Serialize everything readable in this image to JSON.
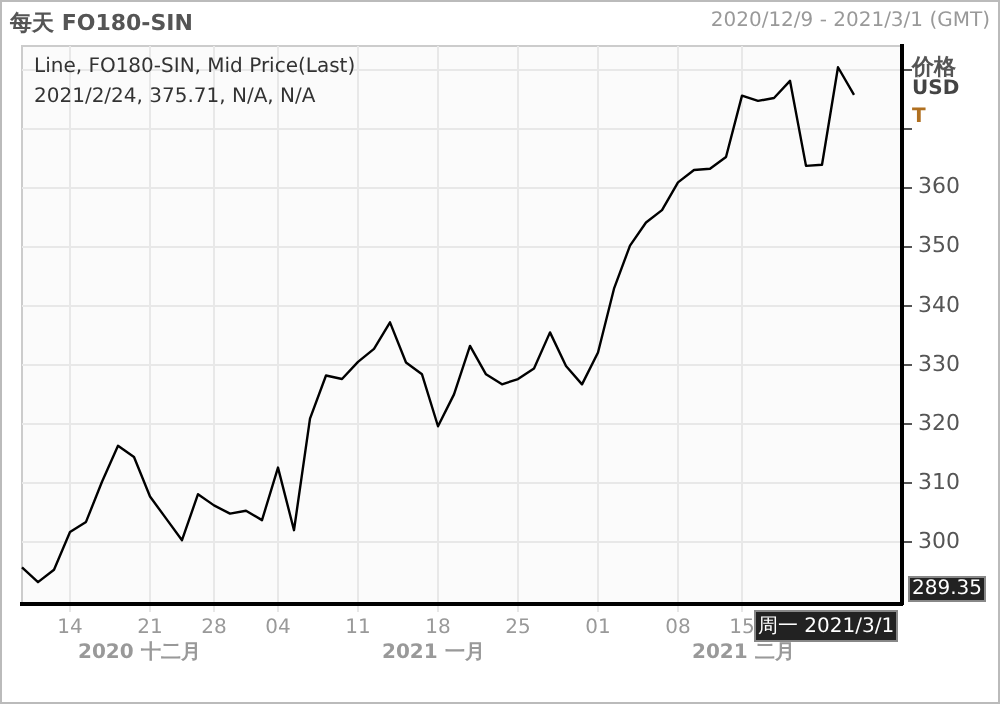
{
  "chart_data": {
    "type": "line",
    "title": "每天 FO180-SIN",
    "subtitle": "2020/12/9 - 2021/3/1 (GMT)",
    "ylabel": "价格",
    "categories": [
      null,
      null,
      null,
      "14",
      null,
      null,
      null,
      null,
      "21",
      null,
      null,
      null,
      "28",
      null,
      null,
      null,
      "04",
      null,
      null,
      null,
      null,
      "11",
      null,
      null,
      null,
      null,
      "18",
      null,
      null,
      null,
      null,
      "25",
      null,
      null,
      null,
      null,
      "01",
      null,
      null,
      null,
      null,
      "08",
      null,
      null,
      null,
      "15",
      null,
      null,
      null,
      null,
      null,
      null,
      null,
      null,
      null,
      null
    ],
    "series": [
      {
        "color": "#000000",
        "values": [
          295.7,
          293.2,
          295.3,
          301.7,
          303.4,
          310.2,
          316.3,
          314.4,
          307.7,
          304,
          300.3,
          308.1,
          306.2,
          304.8,
          305.3,
          303.7,
          312.6,
          302,
          320.9,
          328.2,
          327.6,
          330.5,
          332.7,
          337.2,
          330.4,
          328.4,
          319.6,
          325,
          333.2,
          328.4,
          326.7,
          327.6,
          329.4,
          335.5,
          329.8,
          326.7,
          332.1,
          342.9,
          350.2,
          354.1,
          356.2,
          360.9,
          363,
          363.2,
          365.2,
          375.6,
          374.7,
          375.2,
          378.1,
          363.7,
          363.9,
          380.4,
          375.71,
          null,
          null,
          null
        ]
      }
    ],
    "ylim": [
      289.5,
      384
    ],
    "yticks": [
      300,
      310,
      320,
      330,
      340,
      350,
      360,
      {
        "value": 370,
        "label": null
      },
      {
        "value": 380,
        "label": null
      }
    ],
    "grid": true,
    "legend": false,
    "marker": "none",
    "line_style": "solid",
    "annotations": [
      "Line, FO180-SIN, Mid Price(Last)",
      "2021/2/24, 375.71, N/A, N/A",
      "USD",
      "T",
      "2020 十二月",
      "2021 一月",
      "2021 二月",
      "289.35",
      "周一 2021/3/1"
    ]
  }
}
